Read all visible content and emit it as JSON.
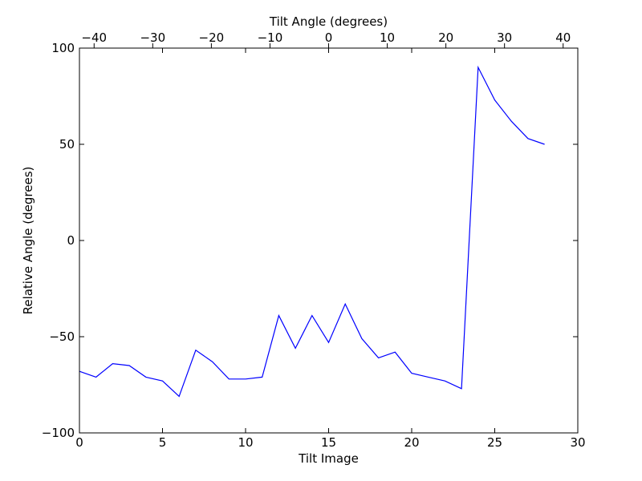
{
  "chart_data": {
    "type": "line",
    "title": "",
    "xlabel": "Tilt Image",
    "ylabel": "Relative Angle (degrees)",
    "top_xlabel": "Tilt Angle (degrees)",
    "xlim": [
      0,
      30
    ],
    "ylim": [
      -100,
      100
    ],
    "top_xlim": [
      -42.5,
      42.5
    ],
    "x_ticks": [
      0,
      5,
      10,
      15,
      20,
      25,
      30
    ],
    "y_ticks": [
      -100,
      -50,
      0,
      50,
      100
    ],
    "top_x_ticks": [
      -40,
      -30,
      -20,
      -10,
      0,
      10,
      20,
      30,
      40
    ],
    "x_tick_labels": [
      "0",
      "5",
      "10",
      "15",
      "20",
      "25",
      "30"
    ],
    "y_tick_labels": [
      "−100",
      "−50",
      "0",
      "50",
      "100"
    ],
    "top_x_tick_labels": [
      "−40",
      "−30",
      "−20",
      "−10",
      "0",
      "10",
      "20",
      "30",
      "40"
    ],
    "grid": false,
    "line_color": "#0000ff",
    "series": [
      {
        "x": [
          0,
          1,
          2,
          3,
          4,
          5,
          6,
          7,
          8,
          9,
          10,
          11,
          12,
          13,
          14,
          15,
          16,
          17,
          18,
          19,
          20,
          21,
          22,
          23,
          24,
          25,
          26,
          27,
          28
        ],
        "values": [
          -68,
          -71,
          -64,
          -65,
          -71,
          -73,
          -81,
          -57,
          -63,
          -72,
          -72,
          -71,
          -39,
          -56,
          -39,
          -53,
          -33,
          -51,
          -61,
          -58,
          -69,
          -71,
          -73,
          -77,
          90,
          73,
          62,
          53,
          50
        ]
      }
    ]
  }
}
